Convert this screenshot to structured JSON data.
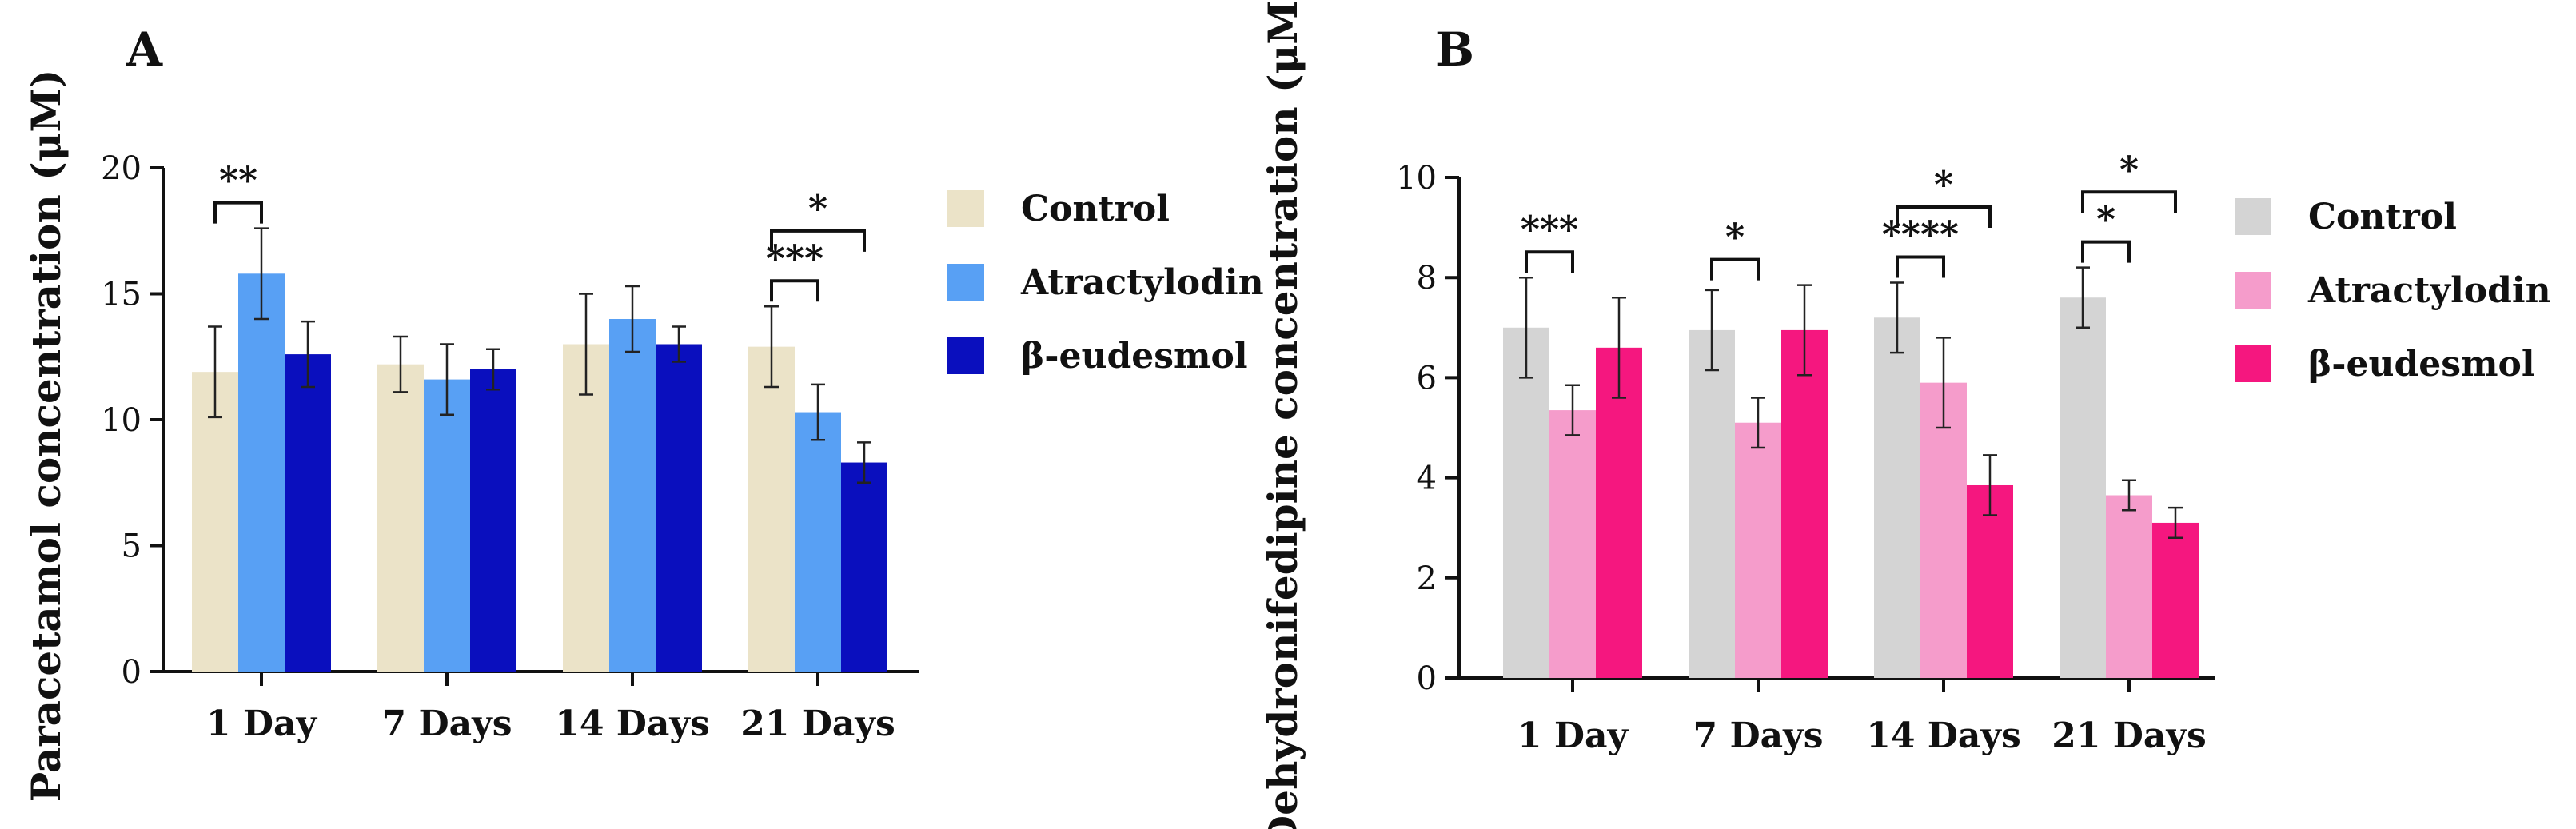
{
  "chart_data": [
    {
      "type": "bar",
      "panel": "A",
      "ylabel": "Paracetamol concentration (μM)",
      "xlabel": "",
      "ylim": [
        0,
        20
      ],
      "yticks": [
        0,
        5,
        10,
        15,
        20
      ],
      "categories": [
        "1 Day",
        "7 Days",
        "14 Days",
        "21 Days"
      ],
      "series": [
        {
          "name": "Control",
          "color": "#ebe3c8",
          "values": [
            11.9,
            12.2,
            13.0,
            12.9
          ],
          "errors": [
            1.8,
            1.1,
            2.0,
            1.6
          ]
        },
        {
          "name": "Atractylodin",
          "color": "#58a0f4",
          "values": [
            15.8,
            11.6,
            14.0,
            10.3
          ],
          "errors": [
            1.8,
            1.4,
            1.3,
            1.1
          ]
        },
        {
          "name": "β-eudesmol",
          "color": "#0a0fbe",
          "values": [
            12.6,
            12.0,
            13.0,
            8.3
          ],
          "errors": [
            1.3,
            0.8,
            0.7,
            0.8
          ]
        }
      ],
      "significance": [
        {
          "category": 0,
          "from": 0,
          "to": 1,
          "label": "**",
          "level": 0
        },
        {
          "category": 3,
          "from": 0,
          "to": 1,
          "label": "***",
          "level": 0
        },
        {
          "category": 3,
          "from": 0,
          "to": 2,
          "label": "*",
          "level": 1
        }
      ],
      "legend": "right"
    },
    {
      "type": "bar",
      "panel": "B",
      "ylabel": "Dehydronifedipine concentration (μM)",
      "xlabel": "",
      "ylim": [
        0,
        10
      ],
      "yticks": [
        0,
        2,
        4,
        6,
        8,
        10
      ],
      "categories": [
        "1 Day",
        "7 Days",
        "14 Days",
        "21 Days"
      ],
      "series": [
        {
          "name": "Control",
          "color": "#d4d4d4",
          "values": [
            7.0,
            6.95,
            7.2,
            7.6
          ],
          "errors": [
            1.0,
            0.8,
            0.7,
            0.6
          ]
        },
        {
          "name": "Atractylodin",
          "color": "#f59ccb",
          "values": [
            5.35,
            5.1,
            5.9,
            3.65
          ],
          "errors": [
            0.5,
            0.5,
            0.9,
            0.3
          ]
        },
        {
          "name": "β-eudesmol",
          "color": "#f5177f",
          "values": [
            6.6,
            6.95,
            3.85,
            3.1
          ],
          "errors": [
            1.0,
            0.9,
            0.6,
            0.3
          ]
        }
      ],
      "significance": [
        {
          "category": 0,
          "from": 0,
          "to": 1,
          "label": "***",
          "level": 0
        },
        {
          "category": 1,
          "from": 0,
          "to": 1,
          "label": "*",
          "level": 0
        },
        {
          "category": 2,
          "from": 0,
          "to": 1,
          "label": "****",
          "level": 0
        },
        {
          "category": 2,
          "from": 0,
          "to": 2,
          "label": "*",
          "level": 1
        },
        {
          "category": 3,
          "from": 0,
          "to": 1,
          "label": "*",
          "level": 0
        },
        {
          "category": 3,
          "from": 0,
          "to": 2,
          "label": "*",
          "level": 1
        }
      ],
      "legend": "right"
    }
  ]
}
